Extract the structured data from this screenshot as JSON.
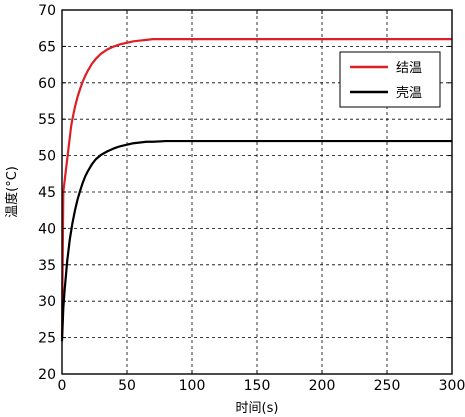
{
  "chart_data": {
    "type": "line",
    "xlabel": "时间(s)",
    "ylabel": "温度(°C)",
    "xlim": [
      0,
      300
    ],
    "ylim": [
      20,
      70
    ],
    "xticks": [
      0,
      50,
      100,
      150,
      200,
      250,
      300
    ],
    "yticks": [
      20,
      25,
      30,
      35,
      40,
      45,
      50,
      55,
      60,
      65,
      70
    ],
    "grid": true,
    "grid_style": "dashed",
    "legend_position": "top-right",
    "series": [
      {
        "name": "结温",
        "color": "#dd1f26",
        "x": [
          0,
          1,
          2,
          3,
          4,
          5,
          6,
          7,
          8,
          10,
          12,
          14,
          16,
          18,
          20,
          23,
          26,
          30,
          35,
          40,
          45,
          50,
          55,
          60,
          65,
          70,
          80,
          90,
          100,
          150,
          200,
          250,
          300
        ],
        "y": [
          25.0,
          45.0,
          46.5,
          48.0,
          49.5,
          51.0,
          52.5,
          54.0,
          55.0,
          56.7,
          58.1,
          59.2,
          60.2,
          61.0,
          61.7,
          62.6,
          63.3,
          64.0,
          64.6,
          65.0,
          65.3,
          65.5,
          65.7,
          65.8,
          65.9,
          66.0,
          66.0,
          66.0,
          66.0,
          66.0,
          66.0,
          66.0,
          66.0
        ]
      },
      {
        "name": "壳温",
        "color": "#000000",
        "x": [
          0,
          1,
          2,
          3,
          4,
          5,
          6,
          7,
          8,
          10,
          12,
          14,
          16,
          18,
          20,
          23,
          26,
          30,
          35,
          40,
          45,
          50,
          55,
          60,
          65,
          70,
          80,
          90,
          100,
          150,
          200,
          250,
          300
        ],
        "y": [
          24.5,
          29.0,
          31.5,
          33.5,
          35.5,
          37.0,
          38.5,
          39.6,
          40.7,
          42.5,
          44.0,
          45.2,
          46.3,
          47.2,
          47.9,
          48.8,
          49.5,
          50.1,
          50.6,
          51.0,
          51.3,
          51.5,
          51.7,
          51.8,
          51.9,
          51.9,
          52.0,
          52.0,
          52.0,
          52.0,
          52.0,
          52.0,
          52.0
        ]
      }
    ]
  }
}
